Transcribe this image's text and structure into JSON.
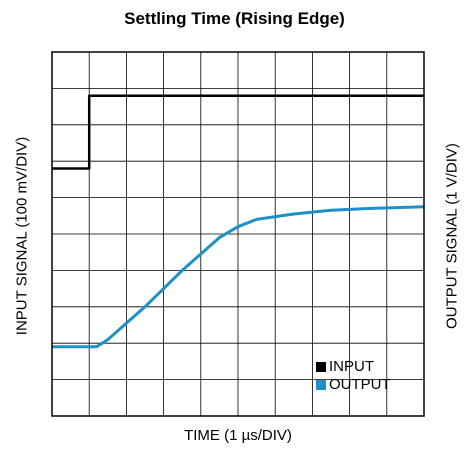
{
  "chart_data": {
    "type": "line",
    "title": "Settling Time (Rising Edge)",
    "xlabel": "TIME (1 µs/DIV)",
    "ylabel_left": "INPUT SIGNAL (100 mV/DIV)",
    "ylabel_right": "OUTPUT SIGNAL (1 V/DIV)",
    "x_divisions": 10,
    "y_divisions": 10,
    "xlim": [
      0,
      10
    ],
    "ylim": [
      0,
      10
    ],
    "grid": true,
    "legend_position": "bottom-right",
    "series": [
      {
        "name": "INPUT",
        "color": "#000000",
        "x": [
          0,
          1.0,
          1.0,
          10
        ],
        "y": [
          6.8,
          6.8,
          8.8,
          8.8
        ]
      },
      {
        "name": "OUTPUT",
        "color": "#1f8fc8",
        "x": [
          0,
          1.2,
          1.5,
          2.5,
          3.5,
          4.5,
          5.0,
          5.5,
          6.5,
          7.5,
          8.5,
          10
        ],
        "y": [
          1.9,
          1.9,
          2.1,
          3.0,
          4.0,
          4.9,
          5.2,
          5.4,
          5.55,
          5.65,
          5.7,
          5.75
        ]
      }
    ]
  }
}
